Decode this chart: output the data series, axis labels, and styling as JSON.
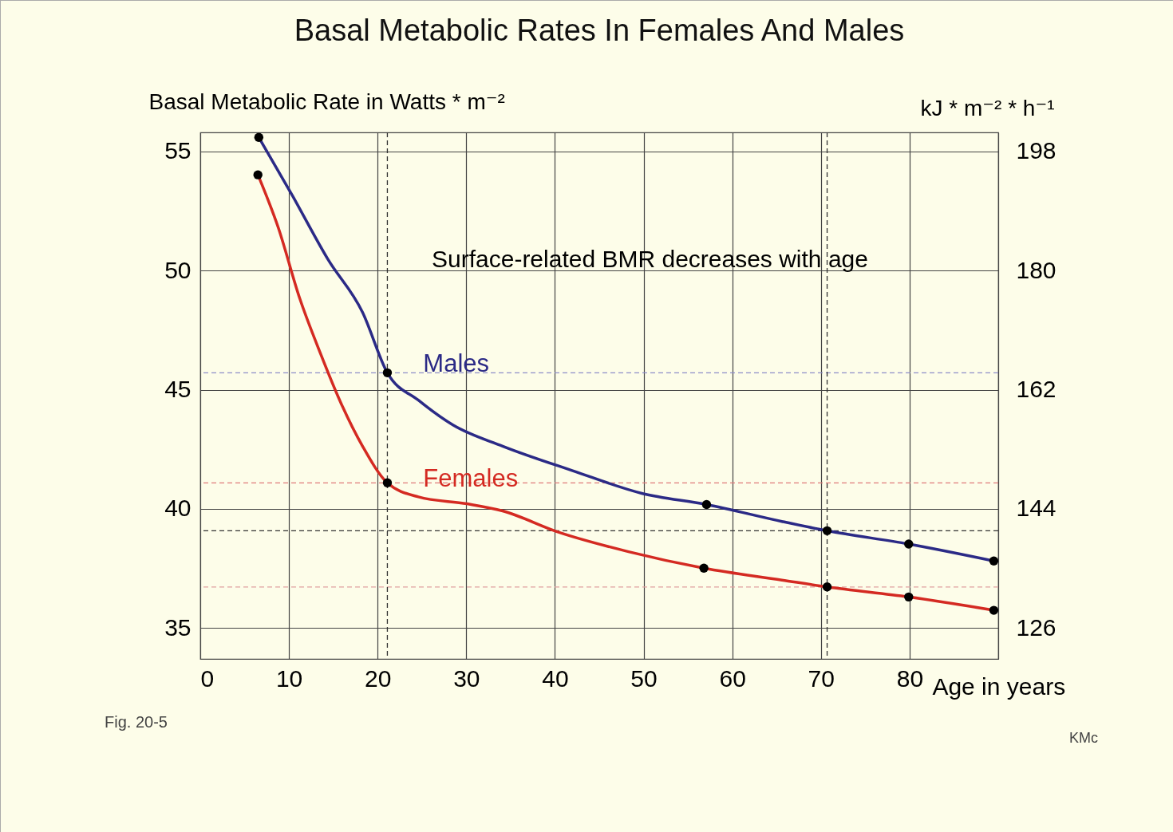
{
  "chart_data": {
    "type": "line",
    "title": "Basal Metabolic Rates In Females And Males",
    "xlabel": "Age in years",
    "ylabel": "Basal Metabolic Rate in Watts * m⁻²",
    "y2label": "kJ * m⁻² * h⁻¹",
    "xlim": [
      0,
      90
    ],
    "xticks": [
      0,
      10,
      20,
      30,
      40,
      50,
      60,
      70,
      80,
      {
        "value": 90,
        "label": null
      }
    ],
    "ylim": [
      33.7,
      55.8
    ],
    "yticks": [
      35,
      40,
      45,
      50,
      55
    ],
    "y2lim": [
      121.32,
      200.88
    ],
    "y2ticks": [
      126,
      144,
      162,
      180,
      198
    ],
    "grid": true,
    "series": [
      {
        "name": "Males",
        "color": "#2b2a86",
        "x": [
          6.6,
          10.4,
          14.4,
          18.3,
          21.1,
          24.6,
          28.5,
          34.1,
          42,
          49.8,
          57.1,
          65.6,
          70.7,
          79.9,
          89.5
        ],
        "values": [
          55.59,
          53.14,
          50.47,
          48.25,
          45.71,
          44.56,
          43.52,
          42.63,
          41.6,
          40.65,
          40.18,
          39.47,
          39.08,
          38.52,
          37.81
        ]
      },
      {
        "name": "Females",
        "color": "#d42a22",
        "x": [
          6.5,
          8.8,
          11.2,
          13.6,
          15.9,
          18.3,
          21.1,
          24.6,
          30.1,
          34.1,
          40.4,
          48.3,
          56.8,
          65.6,
          70.7,
          79.9,
          89.5
        ],
        "values": [
          54.02,
          51.8,
          48.85,
          46.48,
          44.41,
          42.63,
          41.09,
          40.5,
          40.21,
          39.91,
          39.02,
          38.2,
          37.51,
          37.01,
          36.72,
          36.3,
          35.74
        ]
      },
      {
        "type": "scatter",
        "color": "#000000",
        "marker": "circle",
        "x": [
          6.6,
          21.1,
          57.1,
          70.7,
          79.9,
          89.5,
          6.5,
          21.1,
          56.8,
          70.7,
          79.9,
          89.5
        ],
        "values": [
          55.59,
          45.71,
          40.18,
          39.08,
          38.52,
          37.81,
          54.02,
          41.09,
          37.51,
          36.72,
          36.3,
          35.74
        ]
      }
    ],
    "ref_lines": [
      {
        "axis": "y",
        "value": 45.71,
        "color": "#8c8cc8",
        "line_style": "dashed"
      },
      {
        "axis": "y",
        "value": 41.09,
        "color": "#e07a7a",
        "line_style": "dashed"
      },
      {
        "axis": "y",
        "value": 39.08,
        "color": "#333333",
        "line_style": "dashed"
      },
      {
        "axis": "y",
        "value": 36.72,
        "color": "#e0a0a0",
        "line_style": "dashed"
      },
      {
        "axis": "x",
        "value": 21.1,
        "color": "#333333",
        "line_style": "dashed"
      },
      {
        "axis": "x",
        "value": 70.7,
        "color": "#333333",
        "line_style": "dashed"
      }
    ],
    "annotations": [
      "Surface-related BMR decreases with age",
      "Fig. 20-5",
      "KMc"
    ]
  }
}
